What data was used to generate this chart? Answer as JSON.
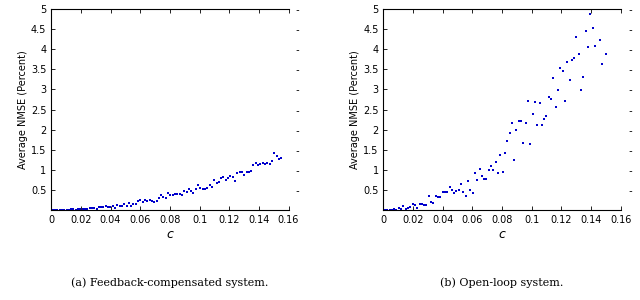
{
  "title_left": "(a) Feedback-compensated system.",
  "title_right": "(b) Open-loop system.",
  "xlabel": "c",
  "ylabel": "Average NMSE (Percent)",
  "xlim": [
    0,
    0.16
  ],
  "ylim": [
    0,
    5
  ],
  "yticks": [
    0.5,
    1,
    1.5,
    2,
    2.5,
    3,
    3.5,
    4,
    4.5,
    5
  ],
  "xticks": [
    0,
    0.02,
    0.04,
    0.06,
    0.08,
    0.1,
    0.12,
    0.14,
    0.16
  ],
  "dot_color": "#0000cc",
  "dot_size": 2.5,
  "n_points": 100,
  "feedback_exponent": 2.0,
  "feedback_scale": 55,
  "openloop_exponent": 2.0,
  "openloop_scale": 220,
  "noise_fb_base": 0.05,
  "noise_ol_base": 0.35
}
